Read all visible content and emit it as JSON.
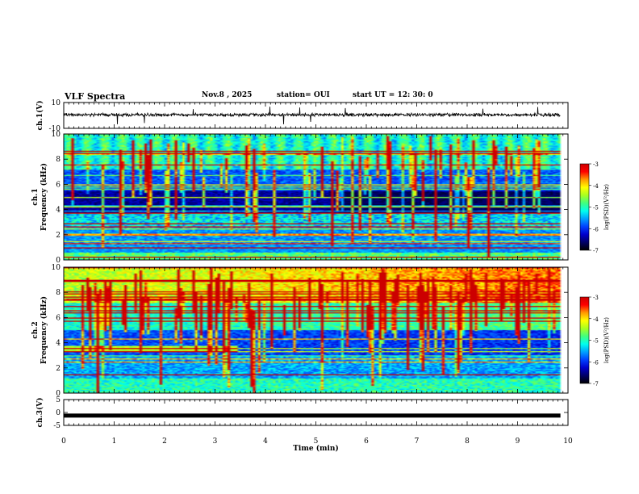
{
  "header": {
    "title": "VLF Spectra",
    "date": "Nov.8 , 2025",
    "station": "station= OUI",
    "start": "start UT = 12: 30: 0"
  },
  "colors": {
    "trace": "#000000",
    "colormap": [
      "#000000",
      "#000066",
      "#0000cc",
      "#0040ff",
      "#00a0ff",
      "#00ffee",
      "#40ff80",
      "#a8ff20",
      "#ffff00",
      "#ff9900",
      "#ff0000",
      "#cc0000"
    ]
  },
  "chart_data": [
    {
      "type": "line",
      "name": "ch1-waveform",
      "ylabel": "ch.1(V)",
      "ylim": [
        -10,
        10
      ],
      "yticks": [
        10,
        -10
      ],
      "xlim": [
        0,
        10
      ],
      "level": 0.5,
      "noise": 1
    },
    {
      "type": "heatmap",
      "name": "ch1-spectrogram",
      "ylabel": "ch.1 Frequency (kHz)",
      "ylim": [
        0,
        10
      ],
      "yticks": [
        0,
        2,
        4,
        6,
        8,
        10
      ],
      "xlim": [
        0,
        10
      ],
      "data_end_min": 9.85,
      "colorbar": {
        "label": "log(PSD)(V²/Hz)",
        "range": [
          -7,
          -3
        ],
        "ticks": [
          -3,
          -4,
          -5,
          -6,
          -7
        ]
      }
    },
    {
      "type": "heatmap",
      "name": "ch2-spectrogram",
      "ylabel": "ch.2 Frequency (kHz)",
      "ylim": [
        0,
        10
      ],
      "yticks": [
        0,
        2,
        4,
        6,
        8,
        10
      ],
      "xlim": [
        0,
        10
      ],
      "data_end_min": 9.85,
      "colorbar": {
        "label": "log(PSD)(V²/Hz)",
        "range": [
          -7,
          -3
        ],
        "ticks": [
          -3,
          -4,
          -5,
          -6,
          -7
        ]
      }
    },
    {
      "type": "line",
      "name": "ch3-waveform",
      "ylabel": "ch.3(V)",
      "ylim": [
        -5,
        5
      ],
      "yticks": [
        5,
        0,
        -5
      ],
      "xlim": [
        0,
        10
      ],
      "level": -1.2,
      "noise": 0
    }
  ],
  "xaxis": {
    "label": "Time (min)",
    "range": [
      0,
      10
    ],
    "ticks": [
      0,
      1,
      2,
      3,
      4,
      5,
      6,
      7,
      8,
      9,
      10
    ]
  }
}
